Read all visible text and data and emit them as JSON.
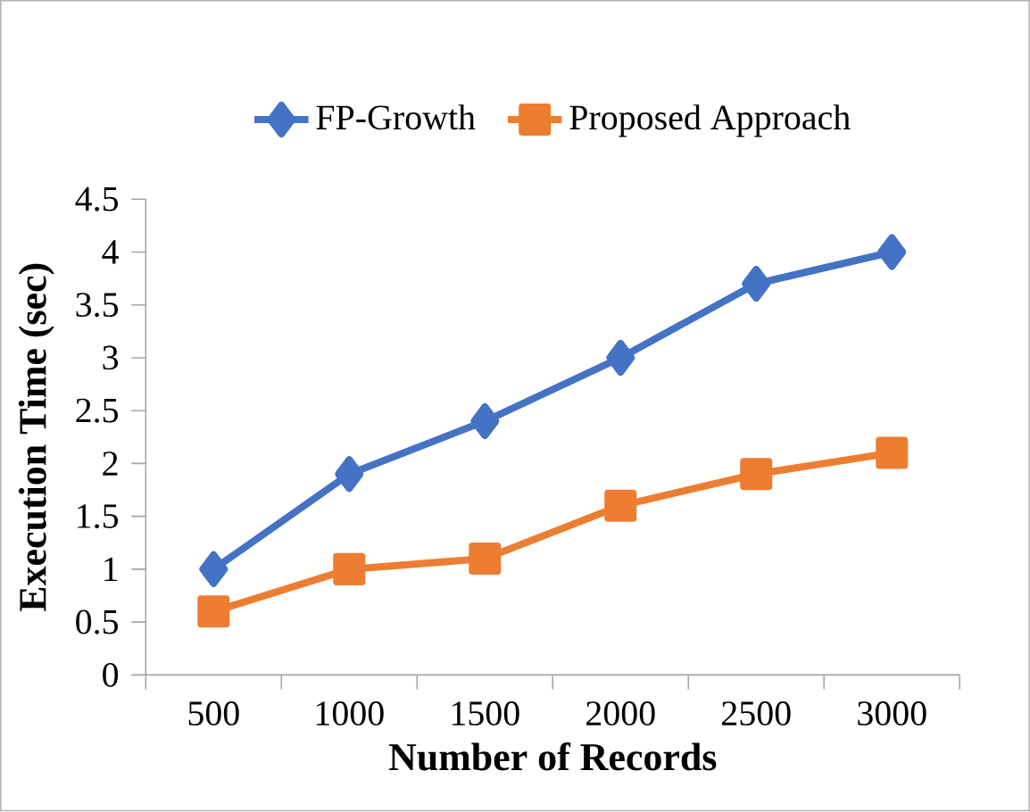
{
  "chart_data": {
    "type": "line",
    "xlabel": "Number of Records",
    "ylabel": "Execution Time (sec)",
    "categories": [
      "500",
      "1000",
      "1500",
      "2000",
      "2500",
      "3000"
    ],
    "series": [
      {
        "name": "FP-Growth",
        "color": "#4472c4",
        "marker": "diamond",
        "values": [
          1,
          1.9,
          2.4,
          3,
          3.7,
          4
        ]
      },
      {
        "name": "Proposed Approach",
        "color": "#ed7d31",
        "marker": "square",
        "values": [
          0.6,
          1.0,
          1.1,
          1.6,
          1.9,
          2.1
        ]
      }
    ],
    "ylim": [
      0,
      4.5
    ],
    "yticks": [
      0,
      0.5,
      1,
      1.5,
      2,
      2.5,
      3,
      3.5,
      4,
      4.5
    ],
    "grid": false,
    "legend": "top",
    "line_style": "solid"
  }
}
